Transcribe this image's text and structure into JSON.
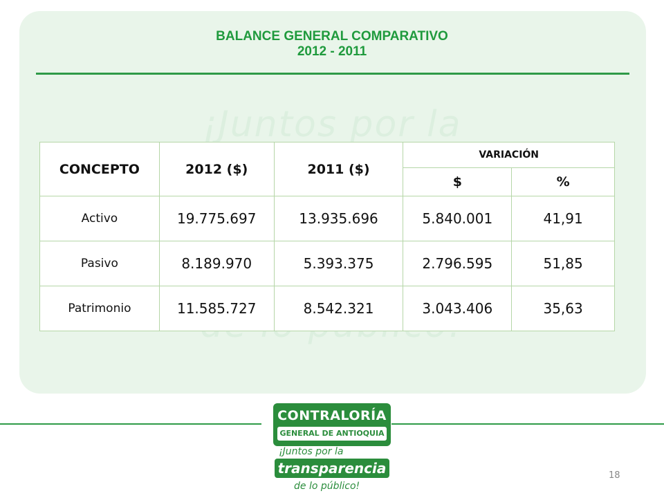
{
  "title": {
    "line1": "BALANCE GENERAL COMPARATIVO",
    "line2": "2012 - 2011"
  },
  "watermark": {
    "line1": "¡Juntos por la",
    "line2": "de lo público!"
  },
  "table": {
    "headers": {
      "concepto": "CONCEPTO",
      "y2012": "2012 ($)",
      "y2011": "2011 ($)",
      "variacion": "VARIACIÓN",
      "var_abs": "$",
      "var_pct": "%"
    },
    "rows": [
      {
        "concepto": "Activo",
        "y2012": "19.775.697",
        "y2011": "13.935.696",
        "var_abs": "5.840.001",
        "var_pct": "41,91"
      },
      {
        "concepto": "Pasivo",
        "y2012": "8.189.970",
        "y2011": "5.393.375",
        "var_abs": "2.796.595",
        "var_pct": "51,85"
      },
      {
        "concepto": "Patrimonio",
        "y2012": "11.585.727",
        "y2011": "8.542.321",
        "var_abs": "3.043.406",
        "var_pct": "35,63"
      }
    ]
  },
  "logo": {
    "line1": "CONTRALORÍA",
    "line2": "GENERAL DE ANTIOQUIA",
    "tagline1": "¡Juntos por la",
    "tagline2": "transparencia",
    "tagline3": "de lo público!"
  },
  "page_number": "18",
  "colors": {
    "accent_green": "#1f9a3d",
    "panel_bg": "#e9f5ea",
    "table_border": "#b5d6a7"
  }
}
